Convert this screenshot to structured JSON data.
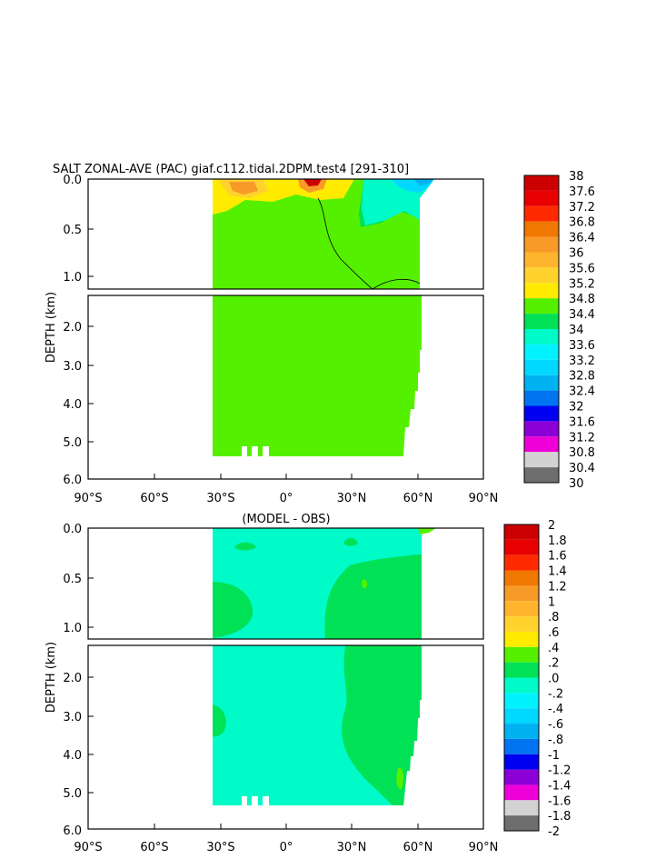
{
  "chart_data": [
    {
      "type": "heatmap",
      "title": "SALT ZONAL-AVE (PAC) giaf.c112.tidal.2DPM.test4  [291-310]",
      "xlabel": "",
      "ylabel": "DEPTH (km)",
      "x_ticks": [
        "90°S",
        "60°S",
        "30°S",
        "0°",
        "30°N",
        "60°N",
        "90°N"
      ],
      "y_ticks_upper": [
        "0.0",
        "0.5",
        "1.0"
      ],
      "y_ticks_lower": [
        "2.0",
        "3.0",
        "4.0",
        "5.0",
        "6.0"
      ],
      "xlim": [
        -90,
        90
      ],
      "ylim_km": [
        0,
        6
      ],
      "upper_panel_depth_km": [
        0,
        1.1
      ],
      "lower_panel_depth_km": [
        1.1,
        6
      ],
      "colorbar_levels": [
        "38",
        "37.6",
        "37.2",
        "36.8",
        "36.4",
        "36",
        "35.6",
        "35.2",
        "34.8",
        "34.4",
        "34",
        "33.6",
        "33.2",
        "32.8",
        "32.4",
        "32",
        "31.6",
        "31.2",
        "30.8",
        "30.4",
        "30"
      ],
      "colorbar_colors": [
        "#cc0000",
        "#e80000",
        "#ff2a00",
        "#f07800",
        "#f79a28",
        "#ffb42e",
        "#ffd22e",
        "#ffeb00",
        "#55f000",
        "#00e156",
        "#00fac8",
        "#00f2ff",
        "#00d8ff",
        "#00b2f2",
        "#0074f0",
        "#0000f0",
        "#8c00d8",
        "#ee00d8",
        "#d2d2d2",
        "#6e6e6e"
      ],
      "dominant_field": {
        "value_range": "34.4-34.8",
        "color": "#55f000",
        "extent_lat": [
          -35,
          62
        ]
      }
    },
    {
      "type": "heatmap",
      "title": "(MODEL - OBS)",
      "xlabel": "",
      "ylabel": "DEPTH (km)",
      "x_ticks": [
        "90°S",
        "60°S",
        "30°S",
        "0°",
        "30°N",
        "60°N",
        "90°N"
      ],
      "y_ticks_upper": [
        "0.0",
        "0.5",
        "1.0"
      ],
      "y_ticks_lower": [
        "2.0",
        "3.0",
        "4.0",
        "5.0",
        "6.0"
      ],
      "xlim": [
        -90,
        90
      ],
      "ylim_km": [
        0,
        6
      ],
      "colorbar_levels": [
        "2",
        "1.8",
        "1.6",
        "1.4",
        "1.2",
        "1",
        ".8",
        ".6",
        ".4",
        ".2",
        ".0",
        "-.2",
        "-.4",
        "-.6",
        "-.8",
        "-1",
        "-1.2",
        "-1.4",
        "-1.6",
        "-1.8",
        "-2"
      ],
      "colorbar_colors": [
        "#cc0000",
        "#e80000",
        "#ff2a00",
        "#f07800",
        "#f79a28",
        "#ffb42e",
        "#ffd22e",
        "#ffeb00",
        "#55f000",
        "#00e156",
        "#00fac8",
        "#00f2ff",
        "#00d8ff",
        "#00b2f2",
        "#0074f0",
        "#0000f0",
        "#8c00d8",
        "#ee00d8",
        "#d2d2d2",
        "#6e6e6e"
      ],
      "dominant_field": {
        "value_range": "-.2-.0",
        "color": "#00fac8",
        "secondary_range": ".0-.2",
        "secondary_color": "#00e156",
        "extent_lat": [
          -35,
          62
        ]
      }
    }
  ]
}
